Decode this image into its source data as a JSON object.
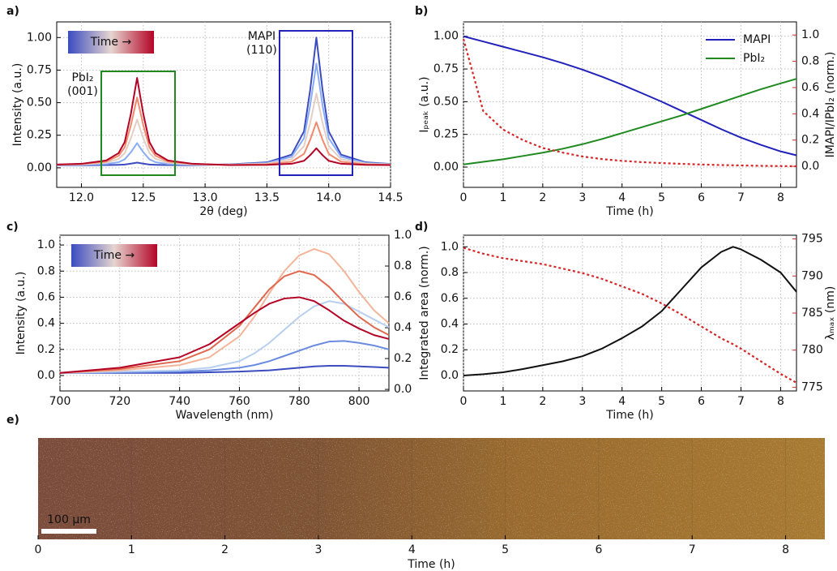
{
  "chart_data": [
    {
      "type": "line",
      "label": "a)",
      "xlabel": "2θ (deg)",
      "ylabel": "Intensity (a.u.)",
      "grid": true,
      "xlim": [
        11.8,
        14.5
      ],
      "ylim": [
        -0.15,
        1.12
      ],
      "xticks": [
        {
          "value": 12,
          "label": "12.0"
        },
        12.5,
        {
          "value": 13,
          "label": "13.0"
        },
        13.5,
        {
          "value": 14,
          "label": "14.0"
        },
        14.5
      ],
      "yticks": [
        {
          "value": 0,
          "label": "0.00"
        },
        0.25,
        {
          "value": 0.5,
          "label": "0.50"
        },
        0.75,
        {
          "value": 1,
          "label": "1.00"
        }
      ],
      "colorbar_label": "Time →",
      "annotations": [
        {
          "text": "PbI₂",
          "color": "#2ca02c"
        },
        {
          "text": "(001)",
          "color": "#2ca02c"
        },
        {
          "text": "MAPI",
          "color": "#2c2cc0"
        },
        {
          "text": "(110)",
          "color": "#2c2cc0"
        }
      ],
      "x": [
        11.8,
        12.0,
        12.2,
        12.3,
        12.35,
        12.4,
        12.45,
        12.5,
        12.55,
        12.6,
        12.7,
        12.9,
        13.2,
        13.5,
        13.7,
        13.8,
        13.85,
        13.9,
        13.95,
        14.0,
        14.1,
        14.3,
        14.5
      ],
      "series": [
        {
          "color": "#3b4cc0",
          "values": [
            0.02,
            0.02,
            0.021,
            0.023,
            0.025,
            0.032,
            0.04,
            0.032,
            0.025,
            0.023,
            0.021,
            0.02,
            0.027,
            0.042,
            0.101,
            0.28,
            0.598,
            1.0,
            0.598,
            0.28,
            0.101,
            0.042,
            0.03
          ]
        },
        {
          "color": "#89acf7",
          "values": [
            0.021,
            0.023,
            0.029,
            0.043,
            0.065,
            0.12,
            0.19,
            0.12,
            0.065,
            0.043,
            0.029,
            0.023,
            0.025,
            0.037,
            0.085,
            0.227,
            0.48,
            0.8,
            0.48,
            0.227,
            0.085,
            0.037,
            0.028
          ]
        },
        {
          "color": "#e3cfc6",
          "values": [
            0.023,
            0.026,
            0.039,
            0.068,
            0.113,
            0.227,
            0.37,
            0.227,
            0.113,
            0.068,
            0.039,
            0.026,
            0.024,
            0.032,
            0.066,
            0.166,
            0.345,
            0.57,
            0.345,
            0.166,
            0.066,
            0.032,
            0.026
          ]
        },
        {
          "color": "#f08a6c",
          "values": [
            0.024,
            0.029,
            0.048,
            0.092,
            0.158,
            0.327,
            0.54,
            0.327,
            0.158,
            0.092,
            0.048,
            0.029,
            0.022,
            0.027,
            0.047,
            0.107,
            0.215,
            0.35,
            0.215,
            0.107,
            0.047,
            0.027,
            0.023
          ]
        },
        {
          "color": "#b40426",
          "values": [
            0.025,
            0.031,
            0.056,
            0.112,
            0.198,
            0.415,
            0.69,
            0.415,
            0.198,
            0.112,
            0.056,
            0.031,
            0.021,
            0.023,
            0.031,
            0.054,
            0.097,
            0.15,
            0.097,
            0.054,
            0.031,
            0.023,
            0.021
          ]
        }
      ]
    },
    {
      "type": "line",
      "label": "b)",
      "xlabel": "Time (h)",
      "ylabel": "Iₚₑₐₖ (a.u.)",
      "y2label": "IMAPI/IPbI₂ (norm.)",
      "y2color": "#d62728",
      "grid": true,
      "legend": "upper right",
      "xlim": [
        0,
        8.4
      ],
      "ylim": [
        -0.155,
        1.11
      ],
      "y2lim": [
        -0.16,
        1.1
      ],
      "xticks": [
        0,
        1,
        2,
        3,
        4,
        5,
        6,
        7,
        8
      ],
      "yticks": [
        {
          "value": 0,
          "label": "0.00"
        },
        0.25,
        {
          "value": 0.5,
          "label": "0.50"
        },
        0.75,
        {
          "value": 1,
          "label": "1.00"
        }
      ],
      "y2ticks": [
        {
          "value": 0,
          "label": "0.0"
        },
        0.2,
        0.4,
        0.6,
        0.8,
        {
          "value": 1,
          "label": "1.0"
        }
      ],
      "x": [
        0,
        0.5,
        1,
        1.5,
        2,
        2.5,
        3,
        3.5,
        4,
        4.5,
        5,
        5.5,
        6,
        6.5,
        7,
        7.5,
        8,
        8.4
      ],
      "series": [
        {
          "name": "MAPI",
          "color": "#2222bb",
          "values": [
            1.0,
            0.96,
            0.92,
            0.88,
            0.84,
            0.795,
            0.745,
            0.69,
            0.63,
            0.565,
            0.5,
            0.43,
            0.36,
            0.29,
            0.225,
            0.17,
            0.12,
            0.09
          ]
        },
        {
          "name": "PbI₂",
          "color": "#1f8a1f",
          "values": [
            0.02,
            0.04,
            0.06,
            0.085,
            0.11,
            0.14,
            0.175,
            0.215,
            0.26,
            0.305,
            0.35,
            0.395,
            0.445,
            0.495,
            0.545,
            0.595,
            0.64,
            0.675
          ]
        },
        {
          "color": "#d62728",
          "axis": "y2",
          "style": "dotted",
          "values": [
            0.97,
            0.42,
            0.28,
            0.2,
            0.14,
            0.105,
            0.075,
            0.055,
            0.042,
            0.032,
            0.025,
            0.019,
            0.014,
            0.01,
            0.007,
            0.004,
            0.002,
            0.001
          ]
        }
      ]
    },
    {
      "type": "line",
      "label": "c)",
      "xlabel": "Wavelength (nm)",
      "ylabel": "Intensity (a.u.)",
      "grid": true,
      "xlim": [
        700,
        810
      ],
      "ylim": [
        -0.118,
        1.075
      ],
      "y2lim": [
        -0.01,
        1.0
      ],
      "xticks": [
        700,
        720,
        740,
        760,
        780,
        800
      ],
      "yticks": [
        {
          "value": 0,
          "label": "0.0"
        },
        0.2,
        0.4,
        0.6,
        0.8,
        {
          "value": 1,
          "label": "1.0"
        }
      ],
      "y2ticks": [
        {
          "value": 0,
          "label": "0.0"
        },
        0.2,
        0.4,
        0.6,
        0.8,
        {
          "value": 1,
          "label": "1.0"
        }
      ],
      "colorbar_label": "Time →",
      "x": [
        700,
        720,
        740,
        750,
        760,
        765,
        770,
        775,
        780,
        785,
        790,
        795,
        800,
        805,
        810
      ],
      "series": [
        {
          "color": "#3b4cc0",
          "values": [
            0.02,
            0.02,
            0.02,
            0.025,
            0.03,
            0.035,
            0.04,
            0.05,
            0.06,
            0.07,
            0.075,
            0.075,
            0.07,
            0.065,
            0.06
          ]
        },
        {
          "color": "#6a8be0",
          "values": [
            0.02,
            0.025,
            0.03,
            0.04,
            0.06,
            0.08,
            0.11,
            0.15,
            0.19,
            0.23,
            0.26,
            0.265,
            0.25,
            0.23,
            0.2
          ]
        },
        {
          "color": "#b8cff0",
          "values": [
            0.02,
            0.03,
            0.04,
            0.06,
            0.11,
            0.17,
            0.25,
            0.35,
            0.45,
            0.53,
            0.57,
            0.55,
            0.49,
            0.43,
            0.37
          ]
        },
        {
          "color": "#f4b59a",
          "values": [
            0.02,
            0.04,
            0.08,
            0.14,
            0.3,
            0.45,
            0.63,
            0.8,
            0.92,
            0.97,
            0.93,
            0.8,
            0.64,
            0.5,
            0.4
          ]
        },
        {
          "color": "#e0684f",
          "values": [
            0.02,
            0.05,
            0.11,
            0.2,
            0.38,
            0.52,
            0.66,
            0.76,
            0.8,
            0.77,
            0.68,
            0.56,
            0.45,
            0.37,
            0.31
          ]
        },
        {
          "color": "#b40426",
          "values": [
            0.02,
            0.06,
            0.14,
            0.24,
            0.4,
            0.48,
            0.55,
            0.59,
            0.6,
            0.57,
            0.5,
            0.42,
            0.36,
            0.31,
            0.28
          ]
        }
      ]
    },
    {
      "type": "line",
      "label": "d)",
      "xlabel": "Time (h)",
      "ylabel": "Integrated area (norm.)",
      "y2label": "λₘₐₓ (nm)",
      "y2color": "#d62728",
      "grid": true,
      "xlim": [
        0,
        8.4
      ],
      "ylim": [
        -0.12,
        1.09
      ],
      "y2lim": [
        774.5,
        795.5
      ],
      "xticks": [
        0,
        1,
        2,
        3,
        4,
        5,
        6,
        7,
        8
      ],
      "yticks": [
        {
          "value": 0,
          "label": "0.0"
        },
        0.2,
        0.4,
        0.6,
        0.8,
        {
          "value": 1,
          "label": "1.0"
        }
      ],
      "y2ticks": [
        775,
        780,
        785,
        790,
        795
      ],
      "x": [
        0,
        0.5,
        1,
        1.5,
        2,
        2.5,
        3,
        3.5,
        4,
        4.5,
        5,
        5.5,
        6,
        6.5,
        6.8,
        7,
        7.5,
        8,
        8.4
      ],
      "series": [
        {
          "color": "#111111",
          "values": [
            0,
            0.01,
            0.025,
            0.05,
            0.08,
            0.11,
            0.15,
            0.21,
            0.29,
            0.38,
            0.5,
            0.67,
            0.84,
            0.96,
            1.0,
            0.98,
            0.9,
            0.8,
            0.65
          ]
        },
        {
          "color": "#d62728",
          "axis": "y2",
          "style": "dotted",
          "values": [
            793.8,
            793,
            792.4,
            792,
            791.6,
            791,
            790.4,
            789.6,
            788.6,
            787.6,
            786.3,
            784.8,
            783.2,
            781.6,
            780.8,
            780.2,
            778.5,
            776.8,
            775.6
          ]
        }
      ]
    },
    {
      "type": "image",
      "label": "e)",
      "xlabel": "Time (h)",
      "xlim": [
        0,
        8.42
      ],
      "xticks": [
        0,
        1,
        2,
        3,
        4,
        5,
        6,
        7,
        8
      ],
      "scalebar": "100 µm"
    }
  ]
}
